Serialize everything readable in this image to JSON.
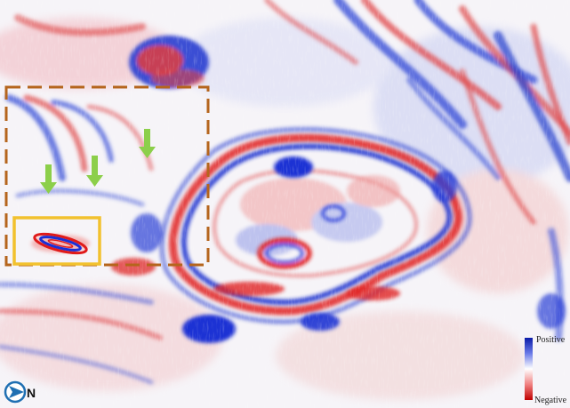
{
  "image": {
    "description_kind": "seismic-attribute-map",
    "colors": {
      "positive": "#1a2fd6",
      "negative": "#e01a1a",
      "background": "#ffffff",
      "roi_box": "#b5651d",
      "inset_box": "#f2c12e",
      "arrow": "#8ccf4a",
      "compass": "#1f6fb2"
    }
  },
  "colorbar": {
    "positive_label": "Positive",
    "negative_label": "Negative"
  },
  "compass": {
    "letter": "N"
  },
  "arrows": {
    "count": 3,
    "direction": "down"
  }
}
